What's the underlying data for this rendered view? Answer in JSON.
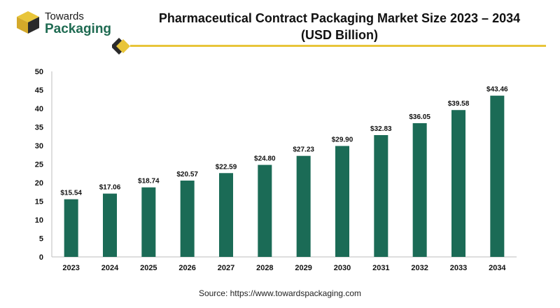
{
  "brand": {
    "line1": "Towards",
    "line2": "Packaging",
    "colors": {
      "gold": "#e8c53a",
      "green": "#1f6b52",
      "dark": "#2a2a2a"
    }
  },
  "title_line1": "Pharmaceutical Contract Packaging Market Size 2023 – 2034",
  "title_line2": "(USD Billion)",
  "source": "Source: https://www.towardspackaging.com",
  "chart_data": {
    "type": "bar",
    "categories": [
      "2023",
      "2024",
      "2025",
      "2026",
      "2027",
      "2028",
      "2029",
      "2030",
      "2031",
      "2032",
      "2033",
      "2034"
    ],
    "values": [
      15.54,
      17.06,
      18.74,
      20.57,
      22.59,
      24.8,
      27.23,
      29.9,
      32.83,
      36.05,
      39.58,
      43.46
    ],
    "value_labels": [
      "$15.54",
      "$17.06",
      "$18.74",
      "$20.57",
      "$22.59",
      "$24.80",
      "$27.23",
      "$29.90",
      "$32.83",
      "$36.05",
      "$39.58",
      "$43.46"
    ],
    "ylim": [
      0,
      50
    ],
    "yticks": [
      0,
      5,
      10,
      15,
      20,
      25,
      30,
      35,
      40,
      45,
      50
    ],
    "grid": false,
    "bar_color": "#1b6b56",
    "xlabel": "",
    "ylabel": ""
  }
}
